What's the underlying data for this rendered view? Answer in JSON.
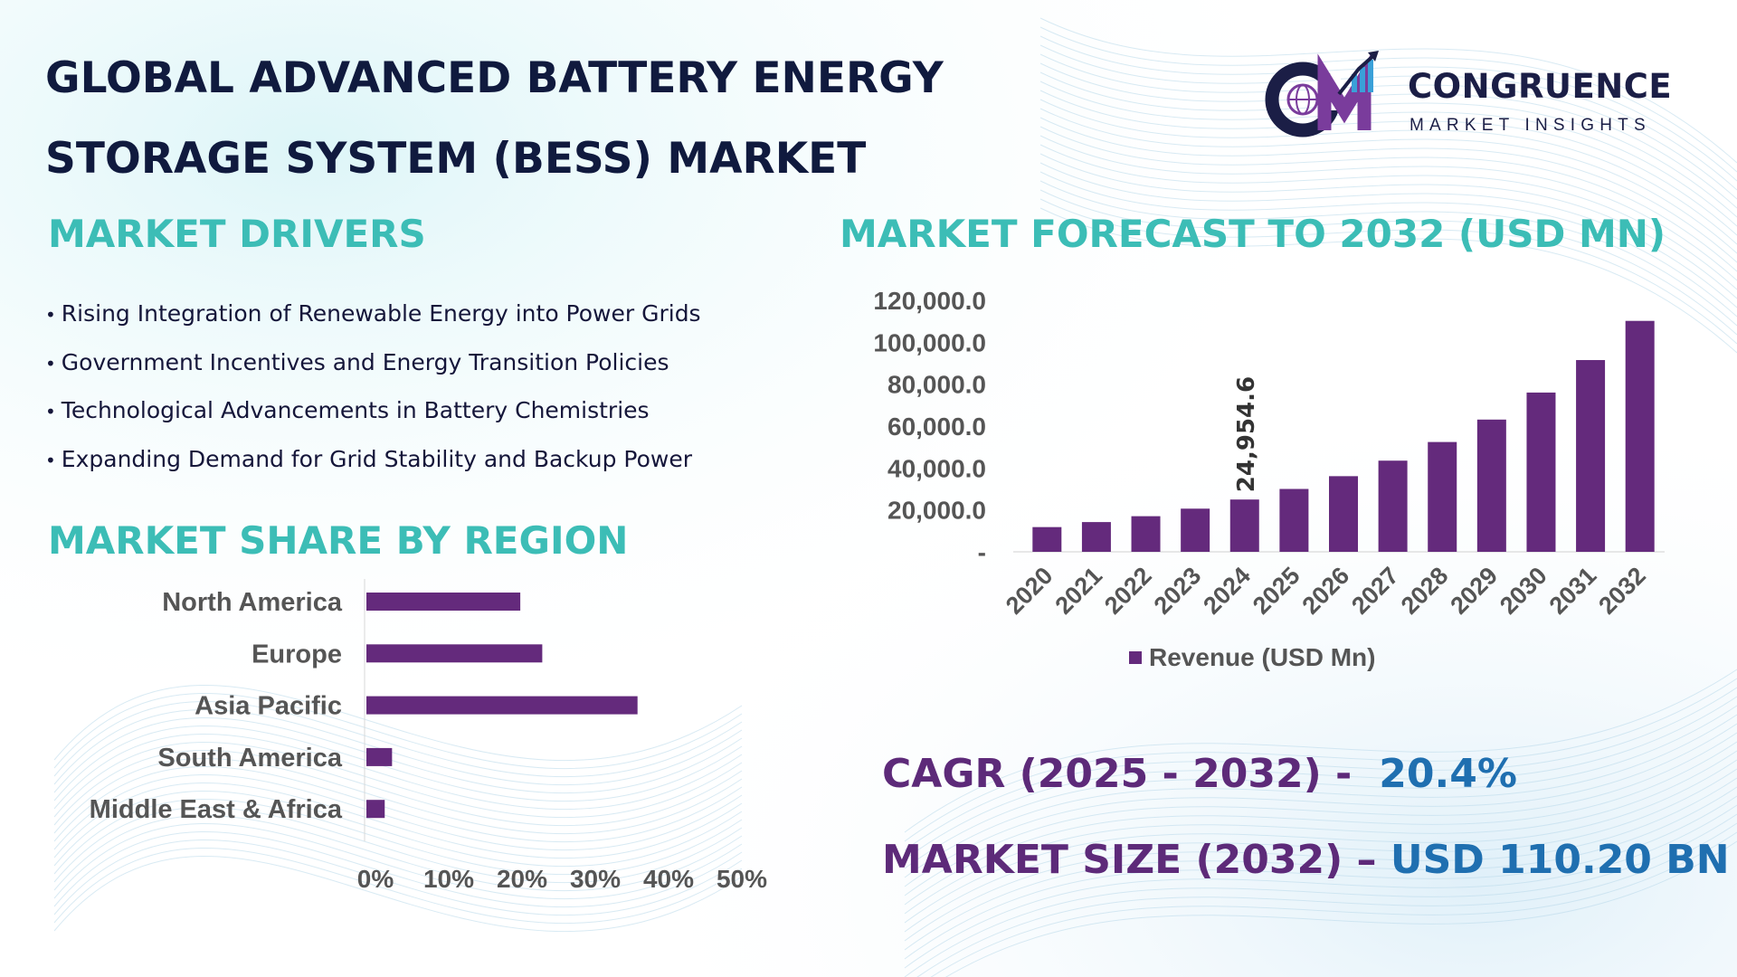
{
  "title": {
    "line1": "GLOBAL ADVANCED BATTERY ENERGY",
    "line2": "STORAGE SYSTEM (BESS) MARKET"
  },
  "logo": {
    "mark": "CM",
    "name": "CONGRUENCE",
    "tagline": "MARKET INSIGHTS"
  },
  "drivers": {
    "heading": "MARKET DRIVERS",
    "items": [
      "Rising Integration of Renewable Energy into Power Grids",
      "Government Incentives and Energy Transition Policies",
      "Technological Advancements in Battery Chemistries",
      "Expanding Demand for Grid Stability and Backup Power"
    ]
  },
  "forecast": {
    "heading": "MARKET FORECAST TO 2032 (USD MN)"
  },
  "region": {
    "heading": "MARKET SHARE BY REGION"
  },
  "kpis": {
    "cagr_label": "CAGR (2025 - 2032) -",
    "cagr_value": "20.4%",
    "size_label": "MARKET SIZE (2032) –",
    "size_value": "USD 110.20 BN"
  },
  "colors": {
    "bar": "#642a7c",
    "heading_teal": "#3cbdb6",
    "kpi_purple": "#5d2a79",
    "kpi_blue": "#1f6fb0",
    "title_navy": "#101a3e",
    "axis_text": "#555555"
  },
  "chart_data": [
    {
      "type": "bar",
      "orientation": "vertical",
      "categories": [
        "2020",
        "2021",
        "2022",
        "2023",
        "2024",
        "2025",
        "2026",
        "2027",
        "2028",
        "2029",
        "2030",
        "2031",
        "2032"
      ],
      "series": [
        {
          "name": "Revenue (USD Mn)",
          "values": [
            11800,
            14200,
            17000,
            20600,
            24954.6,
            30000,
            36100,
            43500,
            52400,
            63100,
            76000,
            91500,
            110200
          ]
        }
      ],
      "data_labels": [
        {
          "category": "2024",
          "text": "24,954.6"
        }
      ],
      "yticks": [
        "-",
        "20,000.0",
        "40,000.0",
        "60,000.0",
        "80,000.0",
        "100,000.0",
        "120,000.0"
      ],
      "ylim": [
        0,
        120000
      ],
      "legend": "bottom",
      "grid": false
    },
    {
      "type": "bar",
      "orientation": "horizontal",
      "categories": [
        "North America",
        "Europe",
        "Asia Pacific",
        "South America",
        "Middle East & Africa"
      ],
      "values": [
        21,
        24,
        37,
        3.5,
        2.5
      ],
      "xticks": [
        "0%",
        "10%",
        "20%",
        "30%",
        "40%",
        "50%"
      ],
      "xlim": [
        0,
        50
      ],
      "legend": "none",
      "grid": false
    }
  ]
}
